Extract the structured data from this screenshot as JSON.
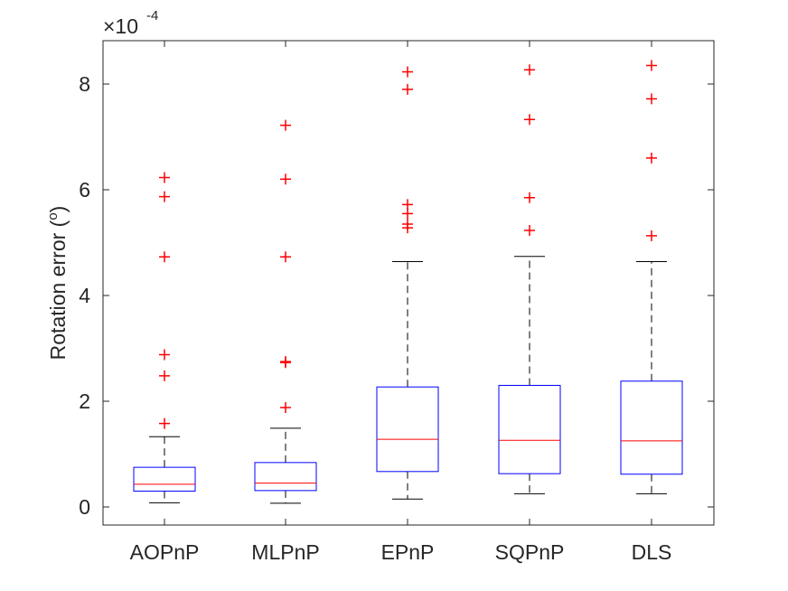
{
  "chart_data": {
    "type": "box",
    "title": "",
    "xlabel": "",
    "ylabel": "Rotation error (",
    "ylabel_sup": "o",
    "ylabel_end": ")",
    "exponent_prefix": "×10",
    "exponent_value": "-4",
    "ylim": [
      -0.35,
      8.8
    ],
    "yticks": [
      0,
      2,
      4,
      6,
      8
    ],
    "ytick_labels": [
      "0",
      "2",
      "4",
      "6",
      "8"
    ],
    "categories": [
      "AOPnP",
      "MLPnP",
      "EPnP",
      "SQPnP",
      "DLS"
    ],
    "boxes": [
      {
        "name": "AOPnP",
        "whisker_low": 0.08,
        "q1": 0.3,
        "median": 0.43,
        "q3": 0.75,
        "whisker_high": 1.33,
        "outliers": [
          1.58,
          2.48,
          2.88,
          4.73,
          5.87,
          6.23
        ]
      },
      {
        "name": "MLPnP",
        "whisker_low": 0.07,
        "q1": 0.31,
        "median": 0.45,
        "q3": 0.84,
        "whisker_high": 1.49,
        "outliers": [
          1.88,
          2.73,
          2.75,
          4.73,
          6.2,
          7.22
        ]
      },
      {
        "name": "EPnP",
        "whisker_low": 0.15,
        "q1": 0.67,
        "median": 1.28,
        "q3": 2.27,
        "whisker_high": 4.64,
        "outliers": [
          5.28,
          5.35,
          5.55,
          5.72,
          7.9,
          8.23
        ]
      },
      {
        "name": "SQPnP",
        "whisker_low": 0.25,
        "q1": 0.63,
        "median": 1.26,
        "q3": 2.3,
        "whisker_high": 4.74,
        "outliers": [
          5.23,
          5.85,
          7.33,
          8.27
        ]
      },
      {
        "name": "DLS",
        "whisker_low": 0.25,
        "q1": 0.62,
        "median": 1.25,
        "q3": 2.38,
        "whisker_high": 4.64,
        "outliers": [
          5.13,
          6.6,
          7.72,
          8.35
        ]
      }
    ],
    "colors": {
      "box": "#0000ff",
      "median": "#ff0000",
      "whisker": "#000000",
      "outlier": "#ff0000",
      "axis": "#262626"
    }
  }
}
